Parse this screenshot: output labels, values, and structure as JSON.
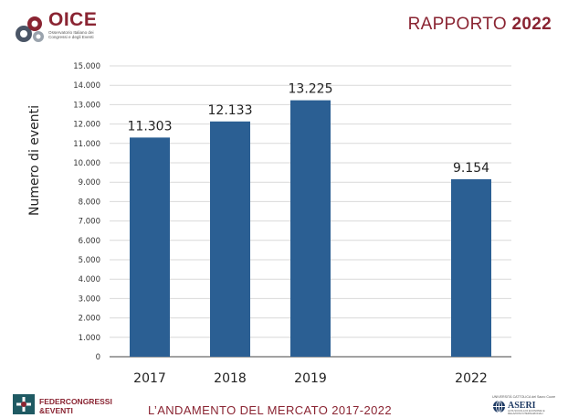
{
  "header": {
    "logo_title": "OICE",
    "logo_subtitle": "Osservatorio Italiano dei Congressi e degli Eventi",
    "report_prefix": "RAPPORTO",
    "report_year": "2022"
  },
  "footer": {
    "federcongressi_line1": "FEDERCONGRESSI",
    "federcongressi_line2": "&EVENTI",
    "title": "L’ANDAMENTO DEL MERCATO 2017-2022",
    "aseri_top": "UNIVERSITÀ CATTOLICA del Sacro Cuore",
    "aseri_name": "ASERI",
    "aseri_sub": "ALTA SCUOLA DI ECONOMIA E RELAZIONI INTERNAZIONALI"
  },
  "chart_data": {
    "type": "bar",
    "categories": [
      "2017",
      "2018",
      "2019",
      "2022"
    ],
    "values": [
      11303,
      12133,
      13225,
      9154
    ],
    "data_labels": [
      "11.303",
      "12.133",
      "13.225",
      "9.154"
    ],
    "ylabel": "Numero di eventi",
    "ylim": [
      0,
      15000
    ],
    "yticks": [
      {
        "value": 0,
        "label": "0"
      },
      {
        "value": 1000,
        "label": "1.000"
      },
      {
        "value": 2000,
        "label": "2.000"
      },
      {
        "value": 3000,
        "label": "3.000"
      },
      {
        "value": 4000,
        "label": "4.000"
      },
      {
        "value": 5000,
        "label": "5.000"
      },
      {
        "value": 6000,
        "label": "6.000"
      },
      {
        "value": 7000,
        "label": "7.000"
      },
      {
        "value": 8000,
        "label": "8.000"
      },
      {
        "value": 9000,
        "label": "9.000"
      },
      {
        "value": 10000,
        "label": "10.000"
      },
      {
        "value": 11000,
        "label": "11.000"
      },
      {
        "value": 12000,
        "label": "12.000"
      },
      {
        "value": 13000,
        "label": "13.000"
      },
      {
        "value": 14000,
        "label": "14.000"
      },
      {
        "value": 15000,
        "label": "15.000"
      }
    ],
    "grid": "horizontal",
    "colors": {
      "bar": "#2b5f93",
      "axis": "#444444",
      "grid": "#d9d9d9",
      "brand": "#8a2432"
    }
  }
}
